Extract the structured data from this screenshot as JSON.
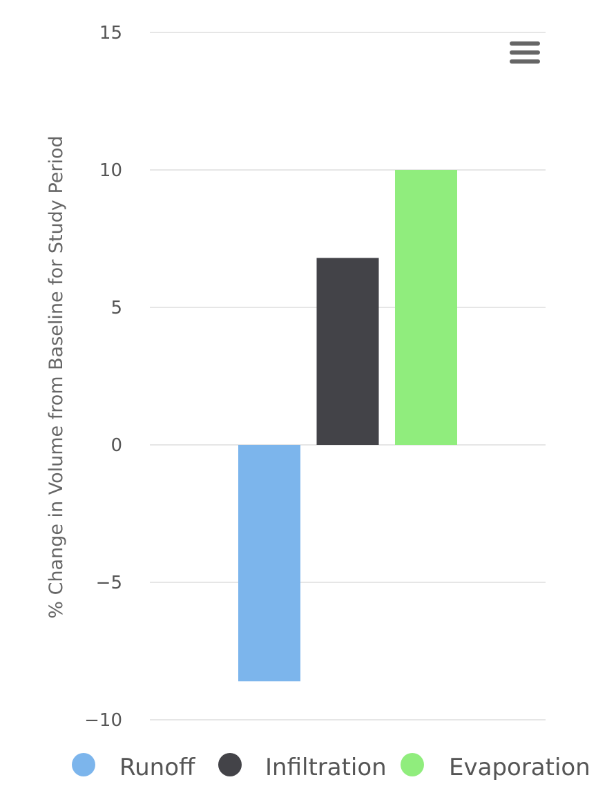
{
  "chart_data": {
    "type": "bar",
    "title": "",
    "xlabel": "",
    "ylabel": "% Change in Volume from Baseline for Study Period",
    "ylim": [
      -10,
      15
    ],
    "yticks": [
      15,
      10,
      5,
      0,
      -5,
      -10
    ],
    "ytick_labels": [
      "15",
      "10",
      "5",
      "0",
      "−5",
      "−10"
    ],
    "grid": true,
    "legend_position": "bottom",
    "series": [
      {
        "name": "Runoff",
        "value": -8.6,
        "color": "#7cb5ec"
      },
      {
        "name": "Infiltration",
        "value": 6.8,
        "color": "#434348"
      },
      {
        "name": "Evaporation",
        "value": 10,
        "color": "#90ed7d"
      }
    ]
  },
  "menu": {
    "icon": "hamburger-menu-icon"
  }
}
